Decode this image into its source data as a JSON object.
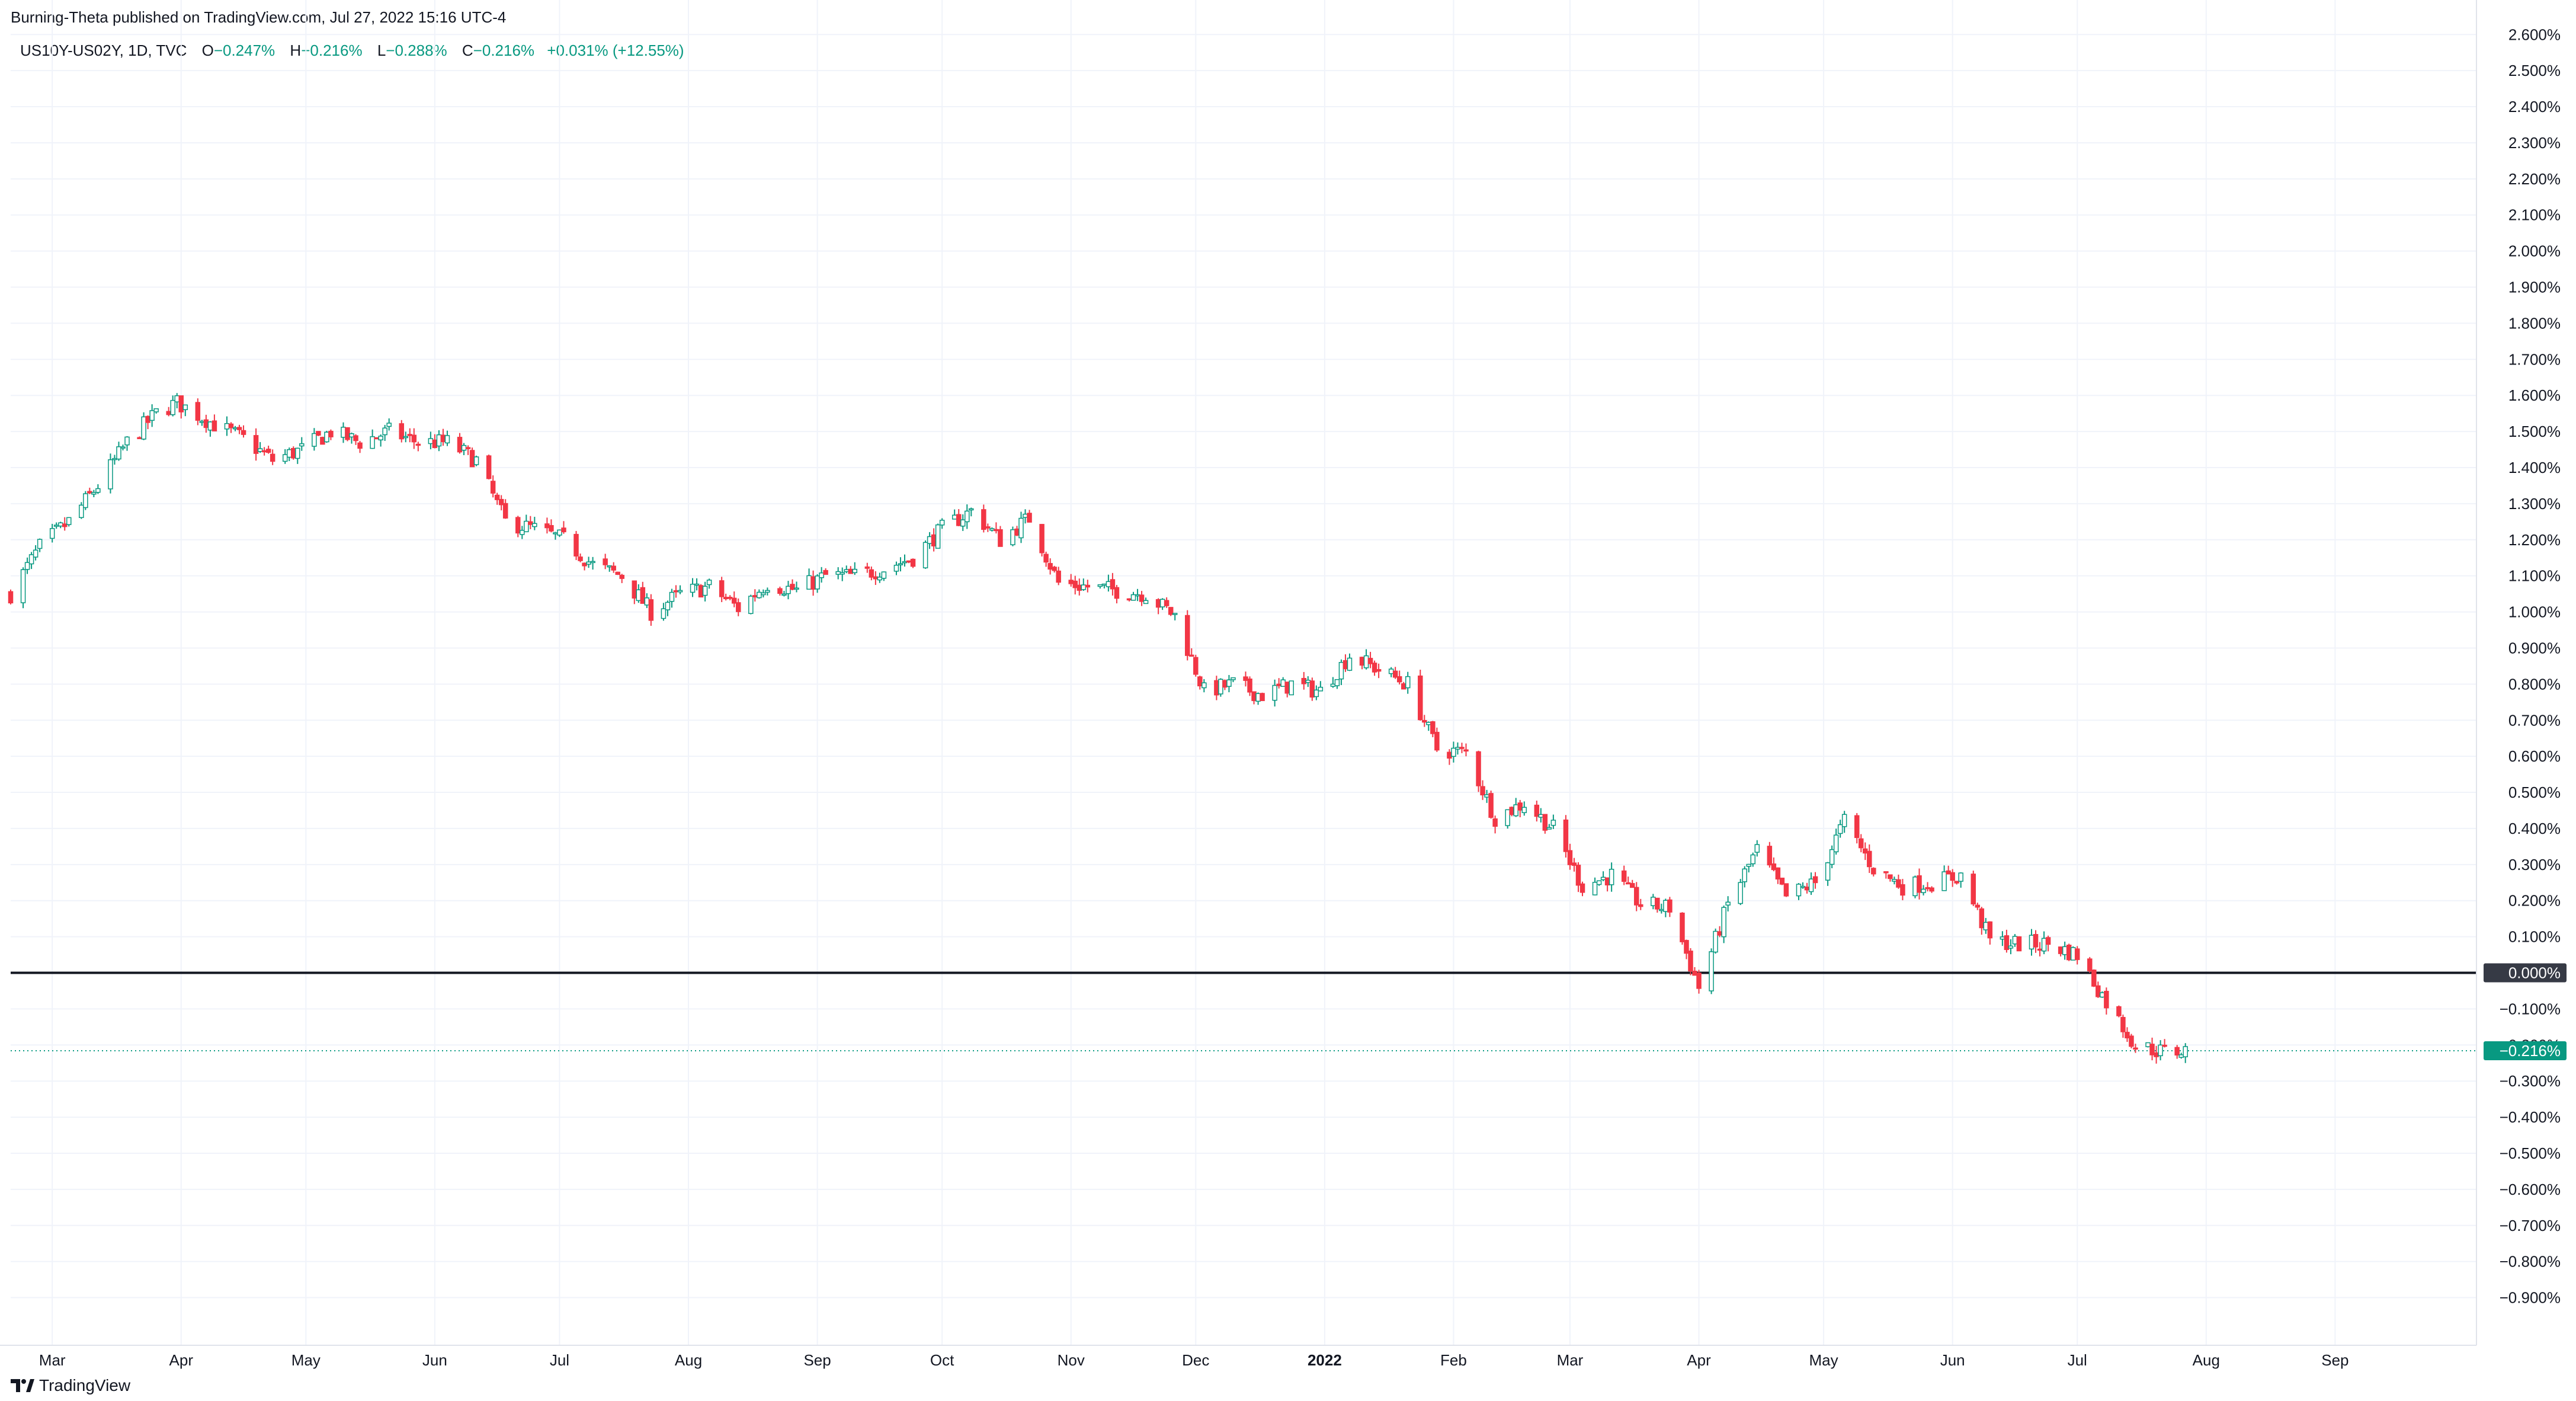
{
  "header": {
    "published": "Burning-Theta published on TradingView.com, Jul 27, 2022 15:16 UTC-4"
  },
  "legend": {
    "symbol": "US10Y-US02Y, 1D, TVC",
    "open_label": "O",
    "open_value": "−0.247%",
    "high_label": "H",
    "high_value": "−0.216%",
    "low_label": "L",
    "low_value": "−0.288%",
    "close_label": "C",
    "close_value": "−0.216%",
    "change_value": "+0.031% (+12.55%)"
  },
  "footer": {
    "brand": "TradingView"
  },
  "colors": {
    "up": "#089981",
    "down": "#f23645",
    "grid": "#f0f3fa",
    "zero_line": "#131722",
    "last_price": "#089981",
    "zero_tag": "#363a45"
  },
  "chart_data": {
    "type": "candlestick",
    "interval": "1D",
    "x_start": "2021-02-19",
    "x_end": "2022-10-05",
    "ylim": [
      -0.95,
      2.63
    ],
    "y_ticks": [
      2.6,
      2.5,
      2.4,
      2.3,
      2.2,
      2.1,
      2.0,
      1.9,
      1.8,
      1.7,
      1.6,
      1.5,
      1.4,
      1.3,
      1.2,
      1.1,
      1.0,
      0.9,
      0.8,
      0.7,
      0.6,
      0.5,
      0.4,
      0.3,
      0.2,
      0.1,
      0.0,
      -0.1,
      -0.2,
      -0.3,
      -0.4,
      -0.5,
      -0.6,
      -0.7,
      -0.8,
      -0.9
    ],
    "y_tick_labels": [
      "2.600%",
      "2.500%",
      "2.400%",
      "2.300%",
      "2.200%",
      "2.100%",
      "2.000%",
      "1.900%",
      "1.800%",
      "1.700%",
      "1.600%",
      "1.500%",
      "1.400%",
      "1.300%",
      "1.200%",
      "1.100%",
      "1.000%",
      "0.900%",
      "0.800%",
      "0.700%",
      "0.600%",
      "0.500%",
      "0.400%",
      "0.300%",
      "0.200%",
      "0.100%",
      "0.000%",
      "−0.100%",
      "−0.200%",
      "−0.300%",
      "−0.400%",
      "−0.500%",
      "−0.600%",
      "−0.700%",
      "−0.800%",
      "−0.900%"
    ],
    "x_ticks": [
      {
        "label": "Mar",
        "date": "2021-03-01"
      },
      {
        "label": "Apr",
        "date": "2021-04-01"
      },
      {
        "label": "May",
        "date": "2021-05-01"
      },
      {
        "label": "Jun",
        "date": "2021-06-01"
      },
      {
        "label": "Jul",
        "date": "2021-07-01"
      },
      {
        "label": "Aug",
        "date": "2021-08-01"
      },
      {
        "label": "Sep",
        "date": "2021-09-01"
      },
      {
        "label": "Oct",
        "date": "2021-10-01"
      },
      {
        "label": "Nov",
        "date": "2021-11-01"
      },
      {
        "label": "Dec",
        "date": "2021-12-01"
      },
      {
        "label": "2022",
        "date": "2022-01-01",
        "bold": true
      },
      {
        "label": "Feb",
        "date": "2022-02-01"
      },
      {
        "label": "Mar",
        "date": "2022-03-01"
      },
      {
        "label": "Apr",
        "date": "2022-04-01"
      },
      {
        "label": "May",
        "date": "2022-05-01"
      },
      {
        "label": "Jun",
        "date": "2022-06-01"
      },
      {
        "label": "Jul",
        "date": "2022-07-01"
      },
      {
        "label": "Aug",
        "date": "2022-08-01"
      },
      {
        "label": "Sep",
        "date": "2022-09-01"
      }
    ],
    "close_path": [
      {
        "date": "2021-02-19",
        "value": 1.05
      },
      {
        "date": "2021-02-26",
        "value": 1.18
      },
      {
        "date": "2021-03-05",
        "value": 1.25
      },
      {
        "date": "2021-03-12",
        "value": 1.35
      },
      {
        "date": "2021-03-19",
        "value": 1.47
      },
      {
        "date": "2021-03-26",
        "value": 1.55
      },
      {
        "date": "2021-03-31",
        "value": 1.58
      },
      {
        "date": "2021-04-09",
        "value": 1.52
      },
      {
        "date": "2021-04-16",
        "value": 1.48
      },
      {
        "date": "2021-04-23",
        "value": 1.42
      },
      {
        "date": "2021-04-30",
        "value": 1.45
      },
      {
        "date": "2021-05-07",
        "value": 1.5
      },
      {
        "date": "2021-05-14",
        "value": 1.47
      },
      {
        "date": "2021-05-21",
        "value": 1.5
      },
      {
        "date": "2021-05-28",
        "value": 1.47
      },
      {
        "date": "2021-06-04",
        "value": 1.47
      },
      {
        "date": "2021-06-11",
        "value": 1.42
      },
      {
        "date": "2021-06-18",
        "value": 1.25
      },
      {
        "date": "2021-06-25",
        "value": 1.23
      },
      {
        "date": "2021-07-02",
        "value": 1.2
      },
      {
        "date": "2021-07-09",
        "value": 1.13
      },
      {
        "date": "2021-07-16",
        "value": 1.1
      },
      {
        "date": "2021-07-23",
        "value": 1.0
      },
      {
        "date": "2021-07-30",
        "value": 1.05
      },
      {
        "date": "2021-08-06",
        "value": 1.07
      },
      {
        "date": "2021-08-13",
        "value": 1.01
      },
      {
        "date": "2021-08-20",
        "value": 1.08
      },
      {
        "date": "2021-08-27",
        "value": 1.06
      },
      {
        "date": "2021-09-03",
        "value": 1.1
      },
      {
        "date": "2021-09-10",
        "value": 1.1
      },
      {
        "date": "2021-09-17",
        "value": 1.12
      },
      {
        "date": "2021-09-24",
        "value": 1.15
      },
      {
        "date": "2021-10-01",
        "value": 1.23
      },
      {
        "date": "2021-10-08",
        "value": 1.28
      },
      {
        "date": "2021-10-15",
        "value": 1.2
      },
      {
        "date": "2021-10-22",
        "value": 1.26
      },
      {
        "date": "2021-10-29",
        "value": 1.08
      },
      {
        "date": "2021-11-05",
        "value": 1.07
      },
      {
        "date": "2021-11-12",
        "value": 1.06
      },
      {
        "date": "2021-11-19",
        "value": 1.05
      },
      {
        "date": "2021-11-26",
        "value": 0.99
      },
      {
        "date": "2021-12-03",
        "value": 0.78
      },
      {
        "date": "2021-12-10",
        "value": 0.8
      },
      {
        "date": "2021-12-17",
        "value": 0.77
      },
      {
        "date": "2021-12-24",
        "value": 0.8
      },
      {
        "date": "2021-12-31",
        "value": 0.78
      },
      {
        "date": "2022-01-07",
        "value": 0.88
      },
      {
        "date": "2022-01-14",
        "value": 0.84
      },
      {
        "date": "2022-01-21",
        "value": 0.8
      },
      {
        "date": "2022-01-28",
        "value": 0.62
      },
      {
        "date": "2022-02-04",
        "value": 0.61
      },
      {
        "date": "2022-02-11",
        "value": 0.43
      },
      {
        "date": "2022-02-18",
        "value": 0.47
      },
      {
        "date": "2022-02-25",
        "value": 0.4
      },
      {
        "date": "2022-03-04",
        "value": 0.24
      },
      {
        "date": "2022-03-11",
        "value": 0.27
      },
      {
        "date": "2022-03-18",
        "value": 0.19
      },
      {
        "date": "2022-03-25",
        "value": 0.18
      },
      {
        "date": "2022-04-01",
        "value": -0.04
      },
      {
        "date": "2022-04-08",
        "value": 0.19
      },
      {
        "date": "2022-04-15",
        "value": 0.34
      },
      {
        "date": "2022-04-22",
        "value": 0.21
      },
      {
        "date": "2022-04-29",
        "value": 0.25
      },
      {
        "date": "2022-05-06",
        "value": 0.42
      },
      {
        "date": "2022-05-13",
        "value": 0.29
      },
      {
        "date": "2022-05-20",
        "value": 0.24
      },
      {
        "date": "2022-05-27",
        "value": 0.25
      },
      {
        "date": "2022-06-03",
        "value": 0.27
      },
      {
        "date": "2022-06-10",
        "value": 0.09
      },
      {
        "date": "2022-06-17",
        "value": 0.08
      },
      {
        "date": "2022-06-24",
        "value": 0.08
      },
      {
        "date": "2022-07-01",
        "value": 0.05
      },
      {
        "date": "2022-07-08",
        "value": -0.08
      },
      {
        "date": "2022-07-15",
        "value": -0.2
      },
      {
        "date": "2022-07-22",
        "value": -0.22
      },
      {
        "date": "2022-07-27",
        "value": -0.216
      }
    ],
    "zero_line": {
      "value": 0.0,
      "label": "0.000%"
    },
    "last_price": {
      "value": -0.216,
      "label": "−0.216%"
    }
  }
}
